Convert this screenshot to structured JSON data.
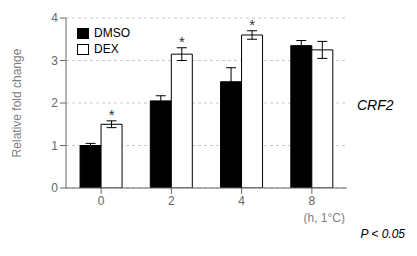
{
  "chart_data": {
    "type": "bar",
    "categories": [
      "0",
      "2",
      "4",
      "8"
    ],
    "series": [
      {
        "name": "DMSO",
        "color": "#000000",
        "values": [
          1.0,
          2.05,
          2.5,
          3.35
        ],
        "errors": [
          0.05,
          0.12,
          0.33,
          0.12
        ]
      },
      {
        "name": "DEX",
        "color": "#ffffff",
        "values": [
          1.5,
          3.15,
          3.6,
          3.25
        ],
        "errors": [
          0.08,
          0.15,
          0.1,
          0.2
        ]
      }
    ],
    "ylabel": "Relative fold change",
    "xlabel": "(h, 1°C)",
    "ylim": [
      0,
      4
    ],
    "yticks": [
      0,
      1,
      2,
      3,
      4
    ],
    "grid": true,
    "legend": "upper left",
    "annotations": [
      {
        "text": "*",
        "category": "0",
        "series": "DEX"
      },
      {
        "text": "*",
        "category": "2",
        "series": "DEX"
      },
      {
        "text": "*",
        "category": "4",
        "series": "DEX"
      },
      {
        "text": "CRF2"
      },
      {
        "text": "P < 0.05"
      }
    ]
  }
}
